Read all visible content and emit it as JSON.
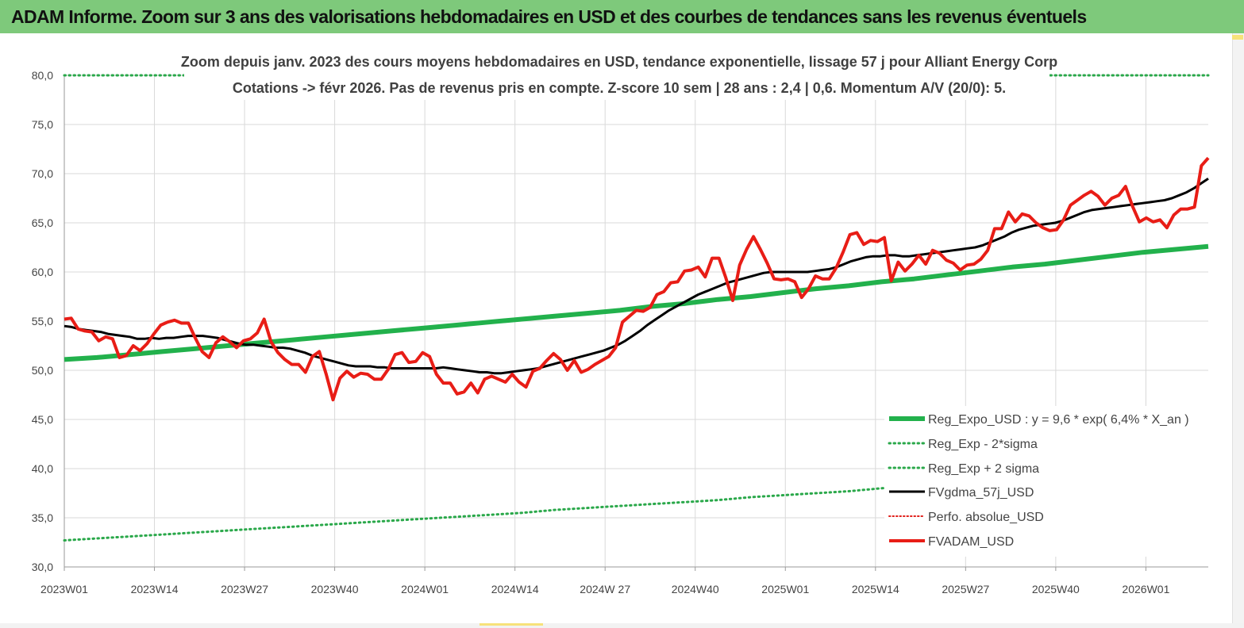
{
  "window_title": "ADAM Informe. Zoom sur 3 ans des valorisations hebdomadaires en USD et des courbes de tendances sans les revenus éventuels",
  "colors": {
    "title_bar": "#7ec97b",
    "reg_expo": "#22b14c",
    "reg_band": "#2aa84a",
    "fvgdma": "#000000",
    "perfo": "#e0201b",
    "fvadam": "#e81d16",
    "grid": "#d9d9d9"
  },
  "chart_data": {
    "type": "line",
    "title_line1": "Zoom depuis janv. 2023 des cours moyens hebdomadaires en USD, tendance exponentielle, lissage 57 j pour Alliant Energy Corp",
    "title_line2": "Cotations -> févr 2026. Pas de revenus pris en compte. Z-score 10 sem | 28 ans : 2,4 | 0,6. Momentum A/V (20/0): 5.",
    "ylim": [
      30,
      80
    ],
    "y_ticks": [
      "30,0",
      "35,0",
      "40,0",
      "45,0",
      "50,0",
      "55,0",
      "60,0",
      "65,0",
      "70,0",
      "75,0",
      "80,0"
    ],
    "x_tick_labels": [
      "2023W01",
      "2023W14",
      "2023W27",
      "2023W40",
      "2024W01",
      "2024W14",
      "2024W 27",
      "2024W40",
      "2025W01",
      "2025W14",
      "2025W27",
      "2025W40",
      "2026W01"
    ],
    "x_tick_weeks": [
      0,
      13,
      26,
      39,
      52,
      65,
      78,
      91,
      104,
      117,
      130,
      143,
      156
    ],
    "x_range_weeks": [
      0,
      165
    ],
    "grid": true,
    "legend_position": "bottom-right",
    "series": [
      {
        "name": "Reg_Expo_USD : y = 9,6 * exp( 6,4% * X_an )",
        "style": "thick-solid",
        "color": "#22b14c",
        "start_week": 0,
        "values": [
          51.1,
          51.3,
          51.6,
          51.9,
          52.2,
          52.5,
          52.8,
          53.1,
          53.4,
          53.7,
          54.0,
          54.3,
          54.6,
          54.9,
          55.2,
          55.5,
          55.8,
          56.1,
          56.5,
          56.8,
          57.2,
          57.5,
          57.9,
          58.3,
          58.6,
          59.0,
          59.3,
          59.7,
          60.1,
          60.5,
          60.8,
          61.2,
          61.6,
          62.0,
          62.3,
          62.6
        ]
      },
      {
        "name": "Reg_Exp - 2*sigma",
        "style": "dotted",
        "color": "#2aa84a",
        "start_week": 0,
        "values": [
          32.7,
          32.9,
          33.1,
          33.3,
          33.5,
          33.7,
          33.9,
          34.1,
          34.3,
          34.5,
          34.7,
          34.9,
          35.1,
          35.3,
          35.5,
          35.8,
          36.0,
          36.2,
          36.4,
          36.6,
          36.8,
          37.1,
          37.3,
          37.5,
          37.7,
          38.0,
          38.2,
          38.4,
          38.7,
          38.9,
          39.1,
          39.4,
          39.6,
          39.8,
          40.0,
          40.1
        ]
      },
      {
        "name": "Reg_Exp + 2 sigma",
        "style": "dotted",
        "color": "#2aa84a",
        "start_week": 0,
        "values": [
          80.0,
          80.0,
          80.0,
          80.0,
          80.0,
          80.0,
          80.0,
          80.0,
          80.0,
          80.0,
          80.0,
          80.0,
          80.0,
          80.0,
          80.0,
          80.0,
          80.0,
          80.0,
          80.0,
          80.0,
          80.0,
          80.0,
          80.0,
          80.0,
          80.0,
          80.0,
          80.0,
          80.0,
          80.0,
          80.0,
          80.0,
          80.0,
          80.0,
          80.0,
          80.0,
          80.0
        ]
      },
      {
        "name": "FVgdma_57j_USD",
        "style": "solid",
        "color": "#000000",
        "start_week": 0,
        "values": [
          54.5,
          54.4,
          54.2,
          54.1,
          54.0,
          53.9,
          53.7,
          53.6,
          53.5,
          53.4,
          53.2,
          53.2,
          53.3,
          53.2,
          53.3,
          53.3,
          53.4,
          53.5,
          53.5,
          53.5,
          53.4,
          53.3,
          53.1,
          52.9,
          52.7,
          52.6,
          52.6,
          52.5,
          52.4,
          52.3,
          52.3,
          52.2,
          52.0,
          51.8,
          51.5,
          51.3,
          51.1,
          50.9,
          50.7,
          50.5,
          50.4,
          50.4,
          50.4,
          50.3,
          50.3,
          50.2,
          50.2,
          50.2,
          50.2,
          50.2,
          50.2,
          50.2,
          50.3,
          50.2,
          50.1,
          50.0,
          49.9,
          49.8,
          49.8,
          49.7,
          49.7,
          49.8,
          49.9,
          50.0,
          50.1,
          50.2,
          50.4,
          50.6,
          50.8,
          51.0,
          51.2,
          51.4,
          51.6,
          51.8,
          52.0,
          52.3,
          52.6,
          53.0,
          53.5,
          54.0,
          54.6,
          55.1,
          55.6,
          56.1,
          56.5,
          56.9,
          57.3,
          57.7,
          58.0,
          58.3,
          58.6,
          58.9,
          59.1,
          59.3,
          59.5,
          59.7,
          59.9,
          60.0,
          60.0,
          60.0,
          60.0,
          60.0,
          60.0,
          60.1,
          60.2,
          60.3,
          60.5,
          60.8,
          61.1,
          61.3,
          61.5,
          61.6,
          61.6,
          61.7,
          61.7,
          61.6,
          61.6,
          61.7,
          61.8,
          61.9,
          62.0,
          62.1,
          62.2,
          62.3,
          62.4,
          62.5,
          62.7,
          63.0,
          63.3,
          63.6,
          64.0,
          64.3,
          64.5,
          64.7,
          64.8,
          64.9,
          65.0,
          65.2,
          65.5,
          65.8,
          66.1,
          66.3,
          66.4,
          66.5,
          66.6,
          66.7,
          66.8,
          66.9,
          67.0,
          67.1,
          67.2,
          67.3,
          67.5,
          67.8,
          68.1,
          68.5,
          69.0,
          69.5
        ]
      },
      {
        "name": "Perfo. absolue_USD",
        "style": "dotted",
        "color": "#e0201b",
        "start_week": 0,
        "values": []
      },
      {
        "name": "FVADAM_USD",
        "style": "thick-solid",
        "color": "#e81d16",
        "start_week": 0,
        "values": [
          55.2,
          55.3,
          54.2,
          54.0,
          53.9,
          53.0,
          53.4,
          53.2,
          51.3,
          51.5,
          52.5,
          52.0,
          52.7,
          53.7,
          54.6,
          54.9,
          55.1,
          54.8,
          54.8,
          53.3,
          51.9,
          51.3,
          52.8,
          53.4,
          52.9,
          52.3,
          53.0,
          53.2,
          53.8,
          55.2,
          52.9,
          51.8,
          51.1,
          50.6,
          50.6,
          49.8,
          51.4,
          51.9,
          49.6,
          47.0,
          49.2,
          49.9,
          49.3,
          49.7,
          49.6,
          49.1,
          49.1,
          50.1,
          51.6,
          51.8,
          50.8,
          50.9,
          51.8,
          51.4,
          49.6,
          48.7,
          48.7,
          47.6,
          47.8,
          48.7,
          47.7,
          49.1,
          49.4,
          49.1,
          48.8,
          49.6,
          48.8,
          48.3,
          49.9,
          50.2,
          51.0,
          51.7,
          51.1,
          50.0,
          51.0,
          49.8,
          50.1,
          50.6,
          51.0,
          51.4,
          52.3,
          54.9,
          55.5,
          56.1,
          56.0,
          56.4,
          57.7,
          58.0,
          58.9,
          59.0,
          60.1,
          60.2,
          60.5,
          59.5,
          61.4,
          61.4,
          59.4,
          57.1,
          60.7,
          62.3,
          63.6,
          62.3,
          60.9,
          59.3,
          59.2,
          59.3,
          59.0,
          57.4,
          58.3,
          59.6,
          59.3,
          59.3,
          60.4,
          62.0,
          63.8,
          64.0,
          62.8,
          63.2,
          63.1,
          63.5,
          59.1,
          61.0,
          60.1,
          60.8,
          61.7,
          60.8,
          62.2,
          61.9,
          61.2,
          60.9,
          60.2,
          60.7,
          60.8,
          61.3,
          62.2,
          64.4,
          64.4,
          66.1,
          65.1,
          65.9,
          65.7,
          65.0,
          64.5,
          64.2,
          64.3,
          65.3,
          66.8,
          67.3,
          67.8,
          68.2,
          67.7,
          66.8,
          67.5,
          67.8,
          68.7,
          66.7,
          65.1,
          65.5,
          65.1,
          65.3,
          64.5,
          65.8,
          66.4,
          66.4,
          66.6,
          70.8,
          71.6
        ]
      }
    ]
  }
}
